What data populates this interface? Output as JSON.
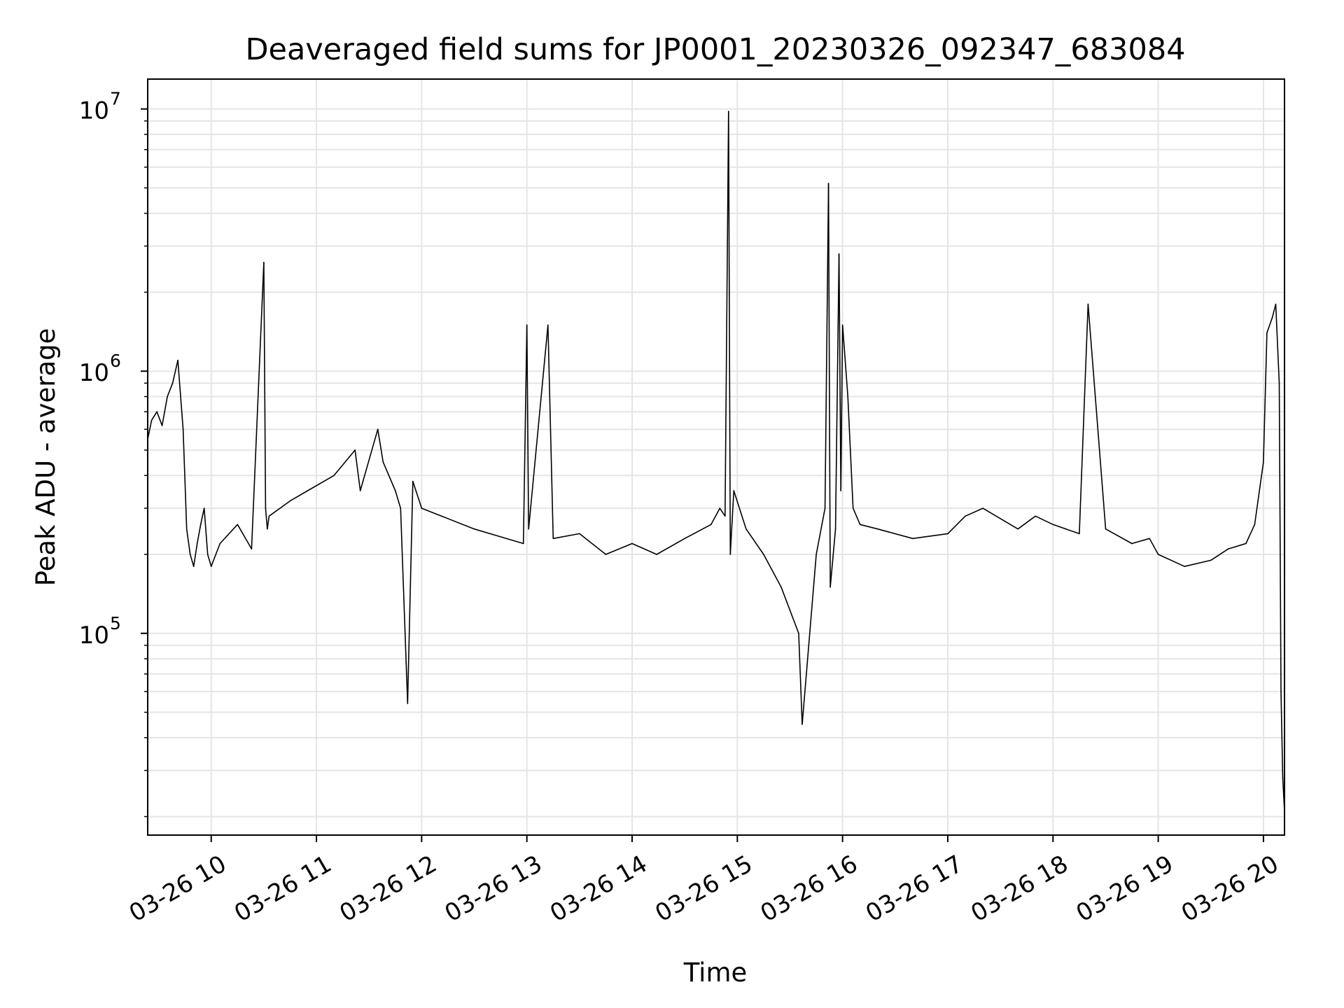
{
  "chart_data": {
    "type": "line",
    "title": "Deaveraged field sums for JP0001_20230326_092347_683084",
    "xlabel": "Time",
    "ylabel": "Peak ADU - average",
    "y_scale": "log",
    "ylim": [
      17000,
      13000000
    ],
    "xlim": [
      "03-26 09:23:47",
      "03-26 20:12"
    ],
    "x_ticks": [
      {
        "t": "03-26 10:00",
        "label": "03-26 10"
      },
      {
        "t": "03-26 11:00",
        "label": "03-26 11"
      },
      {
        "t": "03-26 12:00",
        "label": "03-26 12"
      },
      {
        "t": "03-26 13:00",
        "label": "03-26 13"
      },
      {
        "t": "03-26 14:00",
        "label": "03-26 14"
      },
      {
        "t": "03-26 15:00",
        "label": "03-26 15"
      },
      {
        "t": "03-26 16:00",
        "label": "03-26 16"
      },
      {
        "t": "03-26 17:00",
        "label": "03-26 17"
      },
      {
        "t": "03-26 18:00",
        "label": "03-26 18"
      },
      {
        "t": "03-26 19:00",
        "label": "03-26 19"
      },
      {
        "t": "03-26 20:00",
        "label": "03-26 20"
      }
    ],
    "y_ticks": [
      {
        "value": 100000,
        "base": "10",
        "exp": "5"
      },
      {
        "value": 1000000,
        "base": "10",
        "exp": "6"
      },
      {
        "value": 10000000,
        "base": "10",
        "exp": "7"
      }
    ],
    "grid": true,
    "grid_minor": true,
    "line_color": "#000000",
    "grid_color": "#e5e5e5",
    "series": [
      {
        "x": [
          "03-26 09:23:47",
          "03-26 09:26",
          "03-26 09:29",
          "03-26 09:32",
          "03-26 09:35",
          "03-26 09:38",
          "03-26 09:41",
          "03-26 09:44",
          "03-26 09:46",
          "03-26 09:48",
          "03-26 09:50",
          "03-26 09:52",
          "03-26 09:54",
          "03-26 09:56",
          "03-26 09:58",
          "03-26 10:00",
          "03-26 10:05",
          "03-26 10:15",
          "03-26 10:23",
          "03-26 10:30",
          "03-26 10:31",
          "03-26 10:32",
          "03-26 10:33",
          "03-26 10:45",
          "03-26 10:55",
          "03-26 11:10",
          "03-26 11:22",
          "03-26 11:25",
          "03-26 11:35",
          "03-26 11:38",
          "03-26 11:45",
          "03-26 11:48",
          "03-26 11:52",
          "03-26 11:55",
          "03-26 12:00",
          "03-26 12:30",
          "03-26 12:58",
          "03-26 13:00",
          "03-26 13:01",
          "03-26 13:12",
          "03-26 13:15",
          "03-26 13:30",
          "03-26 13:45",
          "03-26 14:00",
          "03-26 14:14",
          "03-26 14:30",
          "03-26 14:45",
          "03-26 14:50",
          "03-26 14:53",
          "03-26 14:55",
          "03-26 14:56",
          "03-26 14:58",
          "03-26 15:05",
          "03-26 15:15",
          "03-26 15:25",
          "03-26 15:35",
          "03-26 15:37",
          "03-26 15:45",
          "03-26 15:50",
          "03-26 15:52",
          "03-26 15:53",
          "03-26 15:56",
          "03-26 15:58",
          "03-26 15:59",
          "03-26 16:00",
          "03-26 16:03",
          "03-26 16:06",
          "03-26 16:10",
          "03-26 16:20",
          "03-26 16:40",
          "03-26 17:00",
          "03-26 17:10",
          "03-26 17:20",
          "03-26 17:40",
          "03-26 17:50",
          "03-26 18:00",
          "03-26 18:15",
          "03-26 18:20",
          "03-26 18:30",
          "03-26 18:45",
          "03-26 18:55",
          "03-26 19:00",
          "03-26 19:15",
          "03-26 19:30",
          "03-26 19:40",
          "03-26 19:50",
          "03-26 19:55",
          "03-26 20:00",
          "03-26 20:02",
          "03-26 20:05",
          "03-26 20:07",
          "03-26 20:09",
          "03-26 20:10",
          "03-26 20:11",
          "03-26 20:12"
        ],
        "y": [
          550000,
          650000,
          700000,
          620000,
          800000,
          900000,
          1100000,
          600000,
          250000,
          200000,
          180000,
          220000,
          260000,
          300000,
          200000,
          180000,
          220000,
          260000,
          210000,
          2600000,
          300000,
          250000,
          280000,
          320000,
          350000,
          400000,
          500000,
          350000,
          600000,
          450000,
          350000,
          300000,
          54000,
          380000,
          300000,
          250000,
          220000,
          1500000,
          250000,
          1500000,
          230000,
          240000,
          200000,
          220000,
          200000,
          230000,
          260000,
          300000,
          280000,
          9800000,
          200000,
          350000,
          250000,
          200000,
          150000,
          100000,
          45000,
          200000,
          300000,
          5200000,
          150000,
          250000,
          2800000,
          350000,
          1500000,
          800000,
          300000,
          260000,
          250000,
          230000,
          240000,
          280000,
          300000,
          250000,
          280000,
          260000,
          240000,
          1800000,
          250000,
          220000,
          230000,
          200000,
          180000,
          190000,
          210000,
          220000,
          260000,
          450000,
          1400000,
          1600000,
          1800000,
          900000,
          60000,
          28000,
          21000
        ]
      }
    ]
  }
}
